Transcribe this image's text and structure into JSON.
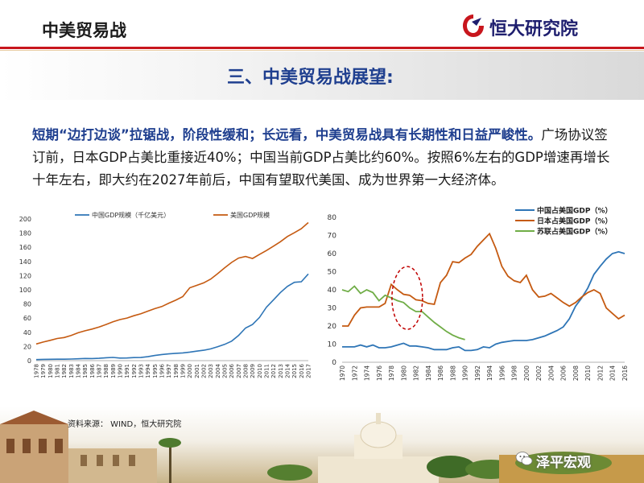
{
  "header": {
    "title": "中美贸易战",
    "logo_text": "恒大研究院"
  },
  "section": {
    "title": "三、中美贸易战展望:"
  },
  "paragraph": {
    "highlight": "短期“边打边谈”拉锯战，阶段性缓和；长远看，中美贸易战具有长期性和日益严峻性。",
    "body": "广场协议签订前，日本GDP占美比重接近40%；中国当前GDP占美比约60%。按照6%左右的GDP增速再增长十年左右，即大约在2027年前后，中国有望取代美国、成为世界第一大经济体。"
  },
  "source": "资料来源： WIND，恒大研究院",
  "footer": {
    "brand": "泽平宏观"
  },
  "colors": {
    "blue": "#2e75b6",
    "orange": "#c55a11",
    "green": "#70ad47",
    "red": "#c00000",
    "accent": "#c8161d"
  },
  "chart_data": [
    {
      "type": "line",
      "title": "",
      "ylim": [
        0,
        200
      ],
      "yticks": [
        0,
        20,
        40,
        60,
        80,
        100,
        120,
        140,
        160,
        180,
        200
      ],
      "x": [
        1978,
        1979,
        1980,
        1981,
        1982,
        1983,
        1984,
        1985,
        1986,
        1987,
        1988,
        1989,
        1990,
        1991,
        1992,
        1993,
        1994,
        1995,
        1996,
        1997,
        1998,
        1999,
        2000,
        2001,
        2002,
        2003,
        2004,
        2005,
        2006,
        2007,
        2008,
        2009,
        2010,
        2011,
        2012,
        2013,
        2014,
        2015,
        2016,
        2017
      ],
      "legend_position": "top",
      "series": [
        {
          "name": "中国GDP规模（千亿美元）",
          "color": "#2e75b6",
          "values": [
            1.5,
            1.8,
            1.9,
            2.0,
            2.1,
            2.3,
            2.6,
            3.1,
            3.0,
            3.3,
            4.1,
            4.6,
            3.6,
            3.8,
            4.3,
            4.4,
            5.6,
            7.3,
            8.6,
            9.6,
            10.3,
            10.9,
            12.1,
            13.4,
            14.7,
            16.6,
            19.6,
            22.9,
            27.5,
            35.5,
            46.0,
            51.0,
            60.9,
            75.5,
            85.7,
            96.1,
            104.8,
            110.6,
            111.4,
            122.4
          ]
        },
        {
          "name": "美国GDP规模",
          "color": "#c55a11",
          "values": [
            23.5,
            26.3,
            28.6,
            31.3,
            32.6,
            35.4,
            39.3,
            42.2,
            44.6,
            47.4,
            51.0,
            54.8,
            58.0,
            60.1,
            63.4,
            66.1,
            69.9,
            73.4,
            76.4,
            81.1,
            85.3,
            90.3,
            102.8,
            106.2,
            109.8,
            115.1,
            122.7,
            130.9,
            138.6,
            144.8,
            147.1,
            144.2,
            149.9,
            155.4,
            161.6,
            167.8,
            175.2,
            180.6,
            186.2,
            194.9
          ]
        }
      ]
    },
    {
      "type": "line",
      "title": "",
      "ylim": [
        0,
        80
      ],
      "yticks": [
        0,
        10,
        20,
        30,
        40,
        50,
        60,
        70,
        80
      ],
      "xticks": [
        1970,
        1972,
        1974,
        1976,
        1978,
        1980,
        1982,
        1984,
        1986,
        1988,
        1990,
        1992,
        1994,
        1996,
        1998,
        2000,
        2002,
        2004,
        2006,
        2008,
        2010,
        2012,
        2014,
        2016
      ],
      "legend_position": "top-right",
      "series": [
        {
          "name": "中国占美国GDP（%）",
          "color": "#2e75b6",
          "x": [
            1970,
            1971,
            1972,
            1973,
            1974,
            1975,
            1976,
            1977,
            1978,
            1979,
            1980,
            1981,
            1982,
            1983,
            1984,
            1985,
            1986,
            1987,
            1988,
            1989,
            1990,
            1991,
            1992,
            1993,
            1994,
            1995,
            1996,
            1997,
            1998,
            1999,
            2000,
            2001,
            2002,
            2003,
            2004,
            2005,
            2006,
            2007,
            2008,
            2009,
            2010,
            2011,
            2012,
            2013,
            2014,
            2015,
            2016
          ],
          "values": [
            8.5,
            8.5,
            8.5,
            9.5,
            8.5,
            9.5,
            8.0,
            8.0,
            8.5,
            9.5,
            10.5,
            9.0,
            9.0,
            8.5,
            8.0,
            7.0,
            7.0,
            7.0,
            8.0,
            8.5,
            6.5,
            6.5,
            7.0,
            8.5,
            8.0,
            10.0,
            11.0,
            11.5,
            12.0,
            12.0,
            12.0,
            12.5,
            13.5,
            14.5,
            16.0,
            17.5,
            19.5,
            24.0,
            31.0,
            35.5,
            41.0,
            48.5,
            53.0,
            57.0,
            60.0,
            61.0,
            60.0
          ]
        },
        {
          "name": "日本占美国GDP（%）",
          "color": "#c55a11",
          "x": [
            1970,
            1971,
            1972,
            1973,
            1974,
            1975,
            1976,
            1977,
            1978,
            1979,
            1980,
            1981,
            1982,
            1983,
            1984,
            1985,
            1986,
            1987,
            1988,
            1989,
            1990,
            1991,
            1992,
            1993,
            1994,
            1995,
            1996,
            1997,
            1998,
            1999,
            2000,
            2001,
            2002,
            2003,
            2004,
            2005,
            2006,
            2007,
            2008,
            2009,
            2010,
            2011,
            2012,
            2013,
            2014,
            2015,
            2016
          ],
          "values": [
            20.0,
            20.0,
            26.0,
            30.0,
            30.5,
            30.5,
            30.5,
            32.5,
            43.0,
            40.0,
            37.5,
            37.0,
            34.5,
            34.0,
            32.5,
            32.0,
            44.0,
            48.0,
            55.5,
            55.0,
            57.5,
            59.5,
            64.0,
            67.5,
            71.0,
            63.0,
            53.0,
            47.5,
            45.0,
            44.0,
            48.0,
            40.0,
            36.0,
            36.5,
            38.0,
            35.5,
            33.0,
            31.0,
            33.0,
            36.0,
            38.5,
            40.0,
            38.0,
            30.0,
            27.0,
            24.0,
            26.0
          ]
        },
        {
          "name": "苏联占美国GDP（%）",
          "color": "#70ad47",
          "x": [
            1970,
            1971,
            1972,
            1973,
            1974,
            1975,
            1976,
            1977,
            1978,
            1979,
            1980,
            1981,
            1982,
            1983,
            1984,
            1985,
            1986,
            1987,
            1988,
            1989,
            1990
          ],
          "values": [
            40.0,
            39.0,
            42.0,
            38.0,
            40.0,
            38.5,
            34.0,
            37.0,
            35.5,
            34.0,
            33.0,
            30.0,
            28.0,
            28.0,
            25.0,
            22.0,
            19.5,
            17.0,
            15.0,
            13.5,
            12.5
          ]
        }
      ]
    }
  ]
}
